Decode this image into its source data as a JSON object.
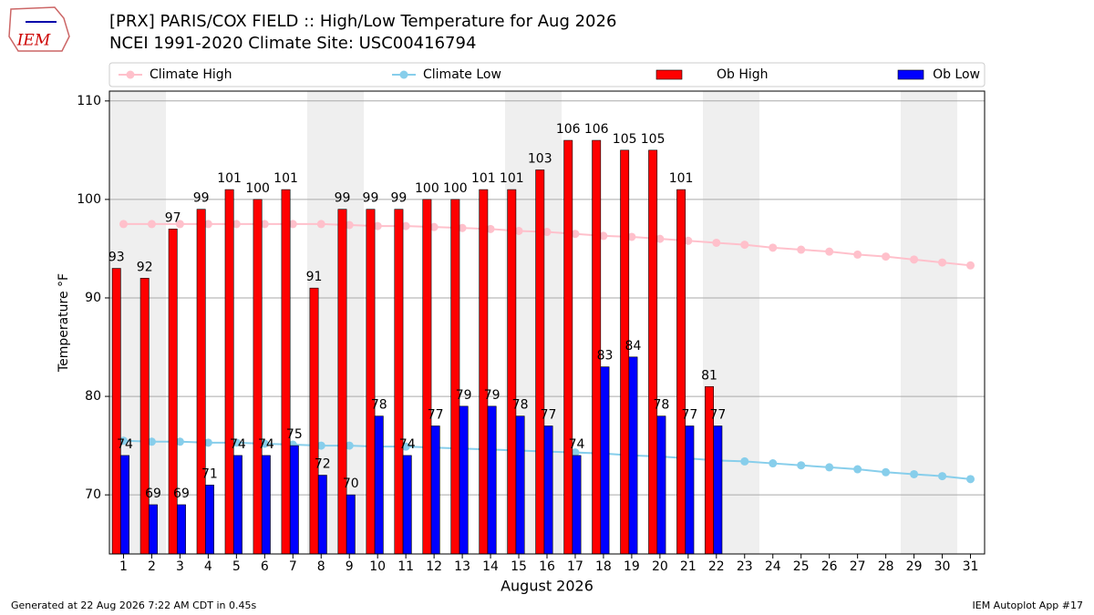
{
  "chart_data": {
    "type": "bar",
    "title": "[PRX] PARIS/COX FIELD :: High/Low Temperature for Aug 2026",
    "subtitle": "NCEI 1991-2020 Climate Site: USC00416794",
    "x_label": "August 2026",
    "y_label": "Temperature °F",
    "footer_left": "Generated at 22 Aug 2026 7:22 AM CDT in 0.45s",
    "footer_right": "IEM Autoplot App #17",
    "logo": "IEM",
    "x": [
      1,
      2,
      3,
      4,
      5,
      6,
      7,
      8,
      9,
      10,
      11,
      12,
      13,
      14,
      15,
      16,
      17,
      18,
      19,
      20,
      21,
      22,
      23,
      24,
      25,
      26,
      27,
      28,
      29,
      30,
      31
    ],
    "xlim": [
      0.5,
      31.5
    ],
    "xticks": [
      1,
      2,
      3,
      4,
      5,
      6,
      7,
      8,
      9,
      10,
      11,
      12,
      13,
      14,
      15,
      16,
      17,
      18,
      19,
      20,
      21,
      22,
      23,
      24,
      25,
      26,
      27,
      28,
      29,
      30,
      31
    ],
    "ylim": [
      64,
      111
    ],
    "yticks": [
      70,
      80,
      90,
      100,
      110
    ],
    "grid": true,
    "legend": "top",
    "series": [
      {
        "name": "Climate High",
        "type": "line",
        "color": "#ffc0cb",
        "values": [
          97.5,
          97.5,
          97.5,
          97.5,
          97.5,
          97.5,
          97.5,
          97.5,
          97.4,
          97.3,
          97.3,
          97.2,
          97.1,
          97.0,
          96.8,
          96.7,
          96.5,
          96.3,
          96.2,
          96.0,
          95.8,
          95.6,
          95.4,
          95.1,
          94.9,
          94.7,
          94.4,
          94.2,
          93.9,
          93.6,
          93.3
        ]
      },
      {
        "name": "Climate Low",
        "type": "line",
        "color": "#87ceeb",
        "values": [
          75.5,
          75.4,
          75.4,
          75.3,
          75.3,
          75.2,
          75.1,
          75.0,
          75.0,
          74.9,
          74.9,
          74.8,
          74.7,
          74.6,
          74.5,
          74.4,
          74.3,
          74.2,
          74.0,
          73.9,
          73.7,
          73.5,
          73.4,
          73.2,
          73.0,
          72.8,
          72.6,
          72.3,
          72.1,
          71.9,
          71.6
        ]
      },
      {
        "name": "Ob High",
        "type": "bar",
        "color": "#ff0000",
        "values": [
          93,
          92,
          97,
          99,
          101,
          100,
          101,
          91,
          99,
          99,
          99,
          100,
          100,
          101,
          101,
          103,
          106,
          106,
          105,
          105,
          101,
          81,
          null,
          null,
          null,
          null,
          null,
          null,
          null,
          null,
          null
        ]
      },
      {
        "name": "Ob Low",
        "type": "bar",
        "color": "#0000ff",
        "values": [
          74,
          69,
          69,
          71,
          74,
          74,
          75,
          72,
          70,
          78,
          74,
          77,
          79,
          79,
          78,
          77,
          74,
          83,
          84,
          78,
          77,
          77,
          null,
          null,
          null,
          null,
          null,
          null,
          null,
          null,
          null
        ]
      }
    ]
  }
}
